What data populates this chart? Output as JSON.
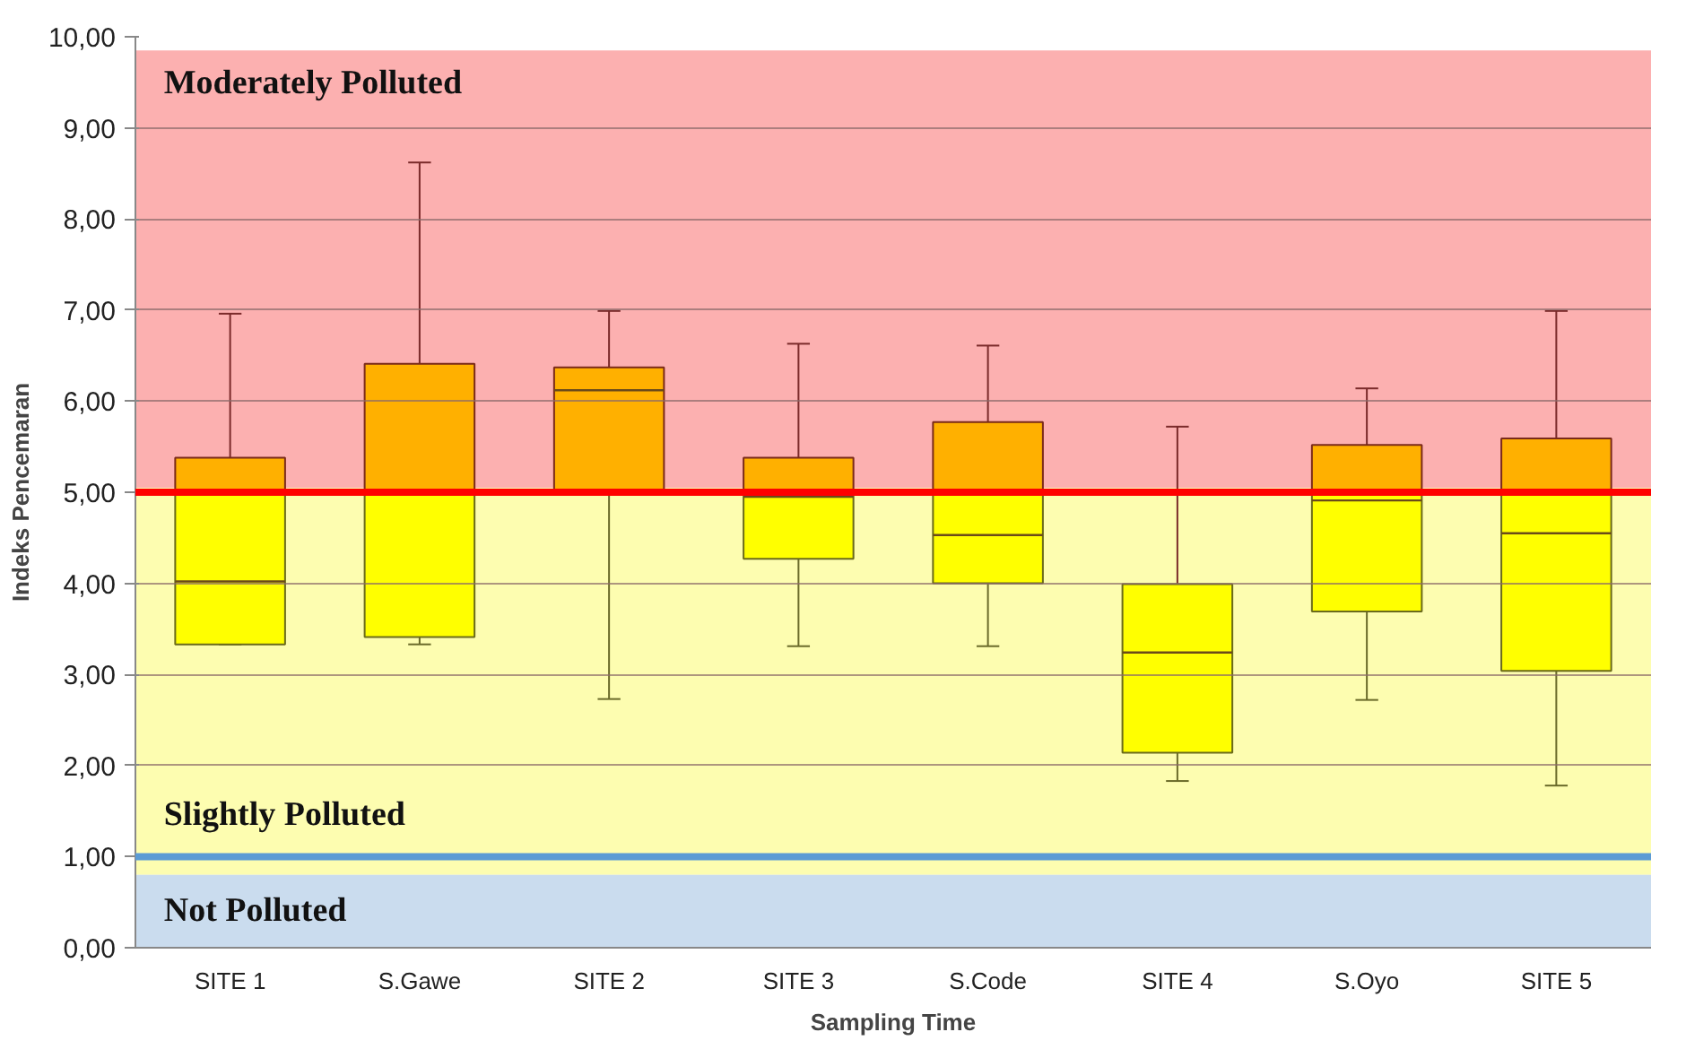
{
  "chart_data": {
    "type": "box",
    "xlabel": "Sampling Time",
    "ylabel": "Indeks Pencemaran",
    "categories": [
      "SITE 1",
      "S.Gawe",
      "SITE 2",
      "SITE 3",
      "S.Code",
      "SITE 4",
      "S.Oyo",
      "SITE 5"
    ],
    "boxes": [
      {
        "low": 3.33,
        "q1": 3.33,
        "median": 4.02,
        "q3": 5.38,
        "high": 6.96
      },
      {
        "low": 3.33,
        "q1": 3.41,
        "median": 5.01,
        "q3": 6.41,
        "high": 8.62
      },
      {
        "low": 2.73,
        "q1": 5.0,
        "median": 6.12,
        "q3": 6.37,
        "high": 6.99
      },
      {
        "low": 3.31,
        "q1": 4.27,
        "median": 4.95,
        "q3": 5.38,
        "high": 6.63
      },
      {
        "low": 3.31,
        "q1": 4.0,
        "median": 4.53,
        "q3": 5.77,
        "high": 6.61
      },
      {
        "low": 1.83,
        "q1": 2.14,
        "median": 3.24,
        "q3": 3.99,
        "high": 5.72
      },
      {
        "low": 2.72,
        "q1": 3.69,
        "median": 4.91,
        "q3": 5.52,
        "high": 6.14
      },
      {
        "low": 1.78,
        "q1": 3.04,
        "median": 4.55,
        "q3": 5.59,
        "high": 6.99
      }
    ],
    "ylim": [
      0,
      10
    ],
    "yticks": [
      {
        "value": 0,
        "label": "0,00"
      },
      {
        "value": 1,
        "label": "1,00"
      },
      {
        "value": 2,
        "label": "2,00"
      },
      {
        "value": 3,
        "label": "3,00"
      },
      {
        "value": 4,
        "label": "4,00"
      },
      {
        "value": 5,
        "label": "5,00"
      },
      {
        "value": 6,
        "label": "6,00"
      },
      {
        "value": 7,
        "label": "7,00"
      },
      {
        "value": 8,
        "label": "8,00"
      },
      {
        "value": 9,
        "label": "9,00"
      },
      {
        "value": 10,
        "label": "10,00"
      }
    ],
    "grid": "y",
    "bands": [
      {
        "axis": "y",
        "from": 5.05,
        "to": 9.85,
        "label": "Moderately Polluted",
        "color": "#fcb0b0"
      },
      {
        "axis": "y",
        "from": 0.8,
        "to": 5.05,
        "label": "Slightly  Polluted",
        "color": "#fdfdb0"
      },
      {
        "axis": "y",
        "from": 0,
        "to": 0.8,
        "label": "Not Polluted",
        "color": "#cadcee"
      }
    ],
    "ref_lines": [
      {
        "axis": "y",
        "value": 5,
        "color": "#ff0000"
      },
      {
        "axis": "y",
        "value": 1,
        "color": "#5b9bd5"
      }
    ]
  }
}
